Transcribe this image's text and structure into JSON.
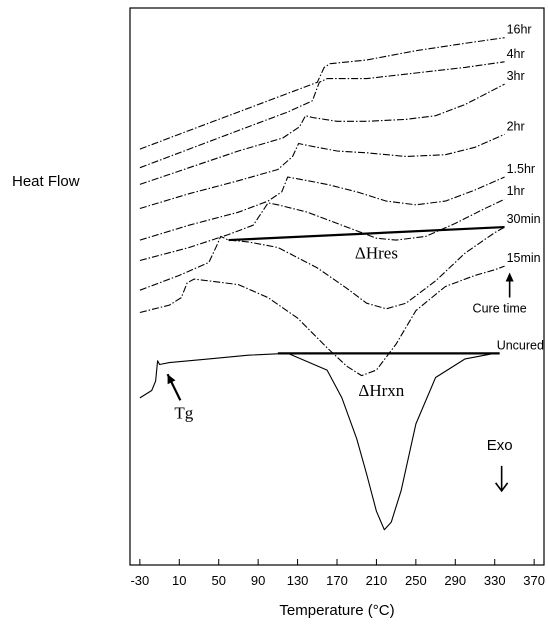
{
  "chart_data": {
    "type": "line",
    "title": "",
    "xlabel": "Temperature (°C)",
    "ylabel": "Heat Flow",
    "xlim": [
      -40,
      380
    ],
    "x_ticks": [
      -30,
      10,
      50,
      90,
      130,
      170,
      210,
      250,
      290,
      330,
      370
    ],
    "y_ticks": [],
    "grid": false,
    "legend": "none",
    "series": [
      {
        "name": "16hr",
        "style": "dashdot",
        "x": [
          -30,
          20,
          70,
          120,
          150,
          157,
          163,
          200,
          250,
          300,
          340
        ],
        "y": [
          8.7,
          9.2,
          9.7,
          10.2,
          10.5,
          10.9,
          11.0,
          11.1,
          11.35,
          11.55,
          11.7
        ]
      },
      {
        "name": "4hr",
        "style": "dashdot",
        "x": [
          -30,
          20,
          70,
          120,
          145,
          152,
          160,
          200,
          250,
          300,
          340
        ],
        "y": [
          8.2,
          8.7,
          9.2,
          9.7,
          10.0,
          10.5,
          10.6,
          10.6,
          10.75,
          10.9,
          11.05
        ]
      },
      {
        "name": "3hr",
        "style": "dashdot",
        "x": [
          -30,
          20,
          70,
          115,
          132,
          138,
          145,
          170,
          200,
          240,
          270,
          300,
          340
        ],
        "y": [
          7.75,
          8.2,
          8.65,
          9.0,
          9.3,
          9.6,
          9.55,
          9.45,
          9.45,
          9.5,
          9.6,
          9.9,
          10.45
        ]
      },
      {
        "name": "2hr",
        "style": "dashdot",
        "x": [
          -30,
          20,
          70,
          110,
          125,
          131,
          140,
          170,
          200,
          240,
          280,
          310,
          340
        ],
        "y": [
          7.1,
          7.5,
          7.85,
          8.15,
          8.5,
          8.85,
          8.8,
          8.65,
          8.6,
          8.5,
          8.55,
          8.75,
          9.1
        ]
      },
      {
        "name": "1.5hr",
        "style": "dashdot",
        "x": [
          -30,
          20,
          70,
          100,
          114,
          120,
          130,
          160,
          190,
          220,
          250,
          280,
          310,
          340
        ],
        "y": [
          6.25,
          6.65,
          7.0,
          7.3,
          7.55,
          7.95,
          7.9,
          7.75,
          7.55,
          7.3,
          7.2,
          7.3,
          7.6,
          7.95
        ]
      },
      {
        "name": "1hr",
        "style": "dashdot",
        "x": [
          -30,
          20,
          60,
          85,
          95,
          100,
          110,
          140,
          180,
          210,
          230,
          260,
          290,
          320,
          340
        ],
        "y": [
          5.7,
          6.05,
          6.4,
          6.65,
          7.05,
          7.25,
          7.2,
          7.0,
          6.6,
          6.3,
          6.25,
          6.35,
          6.7,
          7.1,
          7.35
        ]
      },
      {
        "name": "30min",
        "style": "dashdot",
        "x": [
          -30,
          10,
          40,
          48,
          52,
          60,
          80,
          110,
          150,
          180,
          200,
          220,
          240,
          270,
          300,
          330,
          340
        ],
        "y": [
          4.9,
          5.3,
          5.65,
          6.1,
          6.35,
          6.25,
          6.2,
          6.05,
          5.5,
          4.95,
          4.55,
          4.4,
          4.55,
          5.15,
          5.9,
          6.45,
          6.6
        ]
      },
      {
        "name": "15min",
        "style": "dashdot",
        "x": [
          -30,
          0,
          12,
          18,
          25,
          40,
          70,
          100,
          130,
          160,
          180,
          195,
          210,
          230,
          250,
          280,
          310,
          330,
          340
        ],
        "y": [
          4.3,
          4.5,
          4.7,
          5.1,
          5.2,
          5.15,
          5.05,
          4.7,
          4.15,
          3.35,
          2.85,
          2.6,
          2.75,
          3.45,
          4.35,
          5.0,
          5.3,
          5.45,
          5.55
        ]
      },
      {
        "name": "Uncured",
        "style": "solid",
        "x": [
          -30,
          -18,
          -14,
          -12,
          -10,
          0,
          40,
          80,
          120,
          160,
          175,
          190,
          200,
          210,
          218,
          225,
          235,
          250,
          270,
          300,
          330
        ],
        "y": [
          2.0,
          2.2,
          2.45,
          3.0,
          2.9,
          2.95,
          3.05,
          3.15,
          3.2,
          2.75,
          2.0,
          0.9,
          -0.05,
          -1.05,
          -1.55,
          -1.35,
          -0.5,
          1.3,
          2.55,
          3.05,
          3.2
        ]
      }
    ],
    "baselines": [
      {
        "name": "residual-baseline",
        "x": [
          60,
          340
        ],
        "y": [
          6.25,
          6.6
        ]
      },
      {
        "name": "reaction-baseline",
        "x": [
          110,
          335
        ],
        "y": [
          3.2,
          3.2
        ]
      }
    ],
    "annotations": [
      {
        "name": "delta-h-res",
        "text": "ΔHres",
        "x": 210,
        "y": 5.75
      },
      {
        "name": "delta-h-rxn",
        "text": "ΔHrxn",
        "x": 215,
        "y": 2.05
      },
      {
        "name": "tg",
        "text": "Tg",
        "x": 5,
        "y": 1.45,
        "arrow_to": [
          -10,
          2.8
        ]
      },
      {
        "name": "cure-time",
        "text": "Cure time",
        "x": 335,
        "y": 4.3,
        "arrow": "up"
      },
      {
        "name": "exo",
        "text": "Exo",
        "x": 335,
        "y": 0.6,
        "arrow": "down"
      }
    ]
  }
}
